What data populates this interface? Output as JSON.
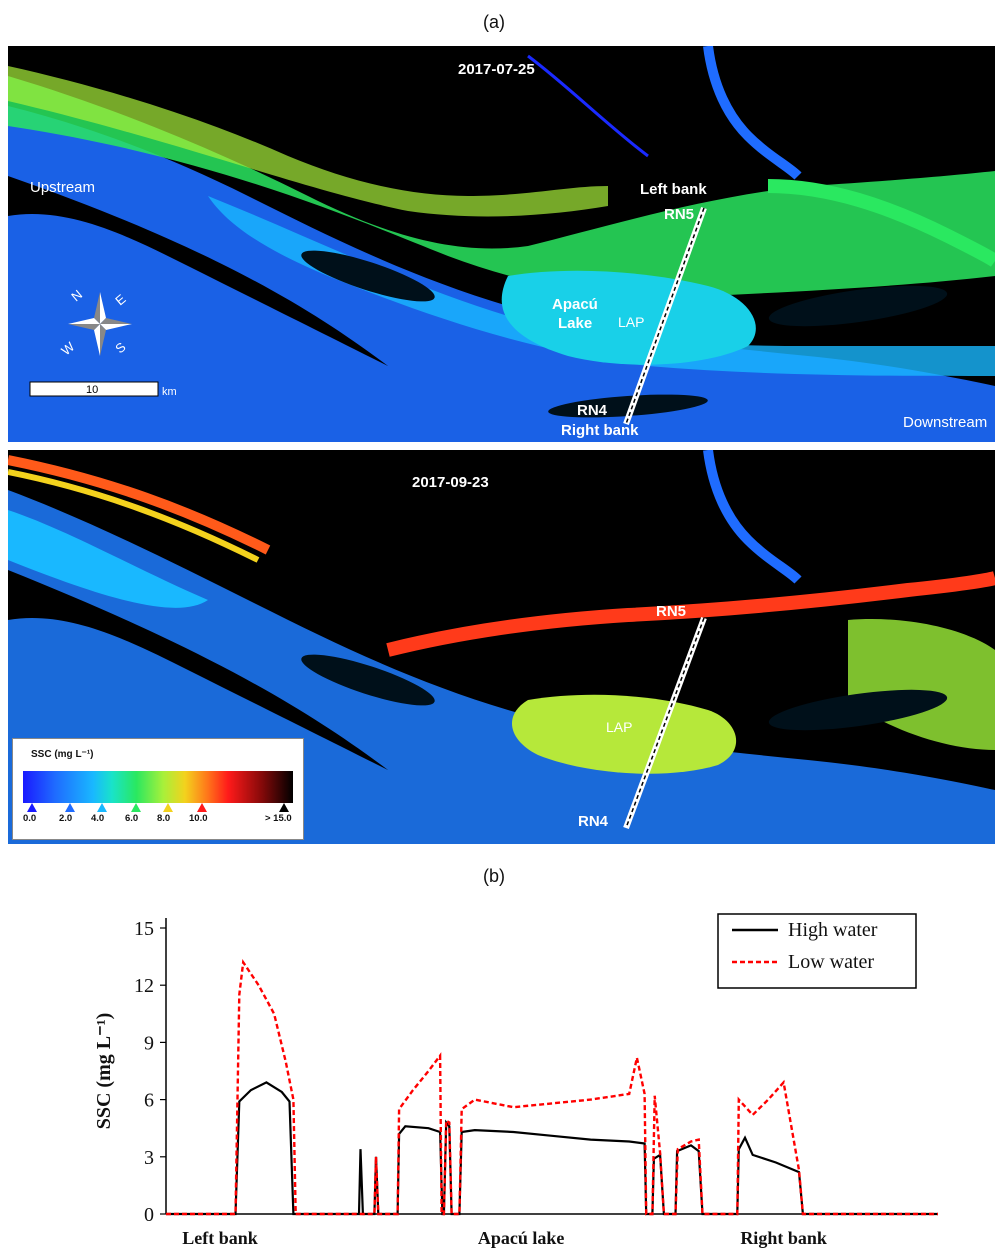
{
  "panel_a_label": "(a)",
  "panel_b_label": "(b)",
  "map_top": {
    "date": "2017-07-25",
    "labels": {
      "upstream": "Upstream",
      "downstream": "Downstream",
      "left_bank": "Left bank",
      "right_bank": "Right bank",
      "rn5": "RN5",
      "rn4": "RN4",
      "apacu_lake_line1": "Apacú",
      "apacu_lake_line2": "Lake",
      "lap": "LAP"
    },
    "compass": {
      "n": "N",
      "e": "E",
      "s": "S",
      "w": "W"
    },
    "scale_bar": {
      "value": "10",
      "unit": "km"
    }
  },
  "map_bottom": {
    "date": "2017-09-23",
    "labels": {
      "rn5": "RN5",
      "rn4": "RN4",
      "lap": "LAP"
    }
  },
  "legend": {
    "title": "SSC (mg L⁻¹)",
    "ticks": [
      "0.0",
      "2.0",
      "4.0",
      "6.0",
      "8.0",
      "10.0",
      "> 15.0"
    ],
    "colors": {
      "0.0": "#1a1aff",
      "2.0": "#1f6cff",
      "4.0": "#19b8ff",
      "6.0": "#2ae860",
      "8.0": "#f3d21d",
      "10.0": "#ff1a1a",
      "15.0": "#000000"
    }
  },
  "chart_data": {
    "type": "line",
    "title": "",
    "xlabel": "",
    "ylabel": "SSC (mg L⁻¹)",
    "ylim": [
      0,
      15
    ],
    "yticks": [
      0,
      3,
      6,
      9,
      12,
      15
    ],
    "x_category_labels": [
      "Left bank",
      "Apacú lake",
      "Right bank"
    ],
    "legend_position": "top-right",
    "series": [
      {
        "name": "High water",
        "color": "#000000",
        "style": "solid",
        "segments": [
          [
            [
              0.0,
              0
            ],
            [
              0.09,
              0
            ],
            [
              0.095,
              5.9
            ],
            [
              0.11,
              6.5
            ],
            [
              0.13,
              6.9
            ],
            [
              0.15,
              6.4
            ],
            [
              0.16,
              5.9
            ],
            [
              0.165,
              0
            ],
            [
              0.25,
              0
            ],
            [
              0.252,
              3.4
            ],
            [
              0.255,
              0
            ],
            [
              0.27,
              0
            ],
            [
              0.272,
              3.0
            ],
            [
              0.275,
              0
            ],
            [
              0.3,
              0
            ],
            [
              0.302,
              4.2
            ],
            [
              0.31,
              4.6
            ],
            [
              0.34,
              4.5
            ],
            [
              0.355,
              4.3
            ],
            [
              0.358,
              0
            ],
            [
              0.36,
              0
            ],
            [
              0.363,
              4.8
            ],
            [
              0.367,
              4.6
            ],
            [
              0.37,
              0
            ],
            [
              0.38,
              0
            ],
            [
              0.383,
              4.3
            ],
            [
              0.4,
              4.4
            ],
            [
              0.45,
              4.3
            ],
            [
              0.5,
              4.1
            ],
            [
              0.55,
              3.9
            ],
            [
              0.6,
              3.8
            ],
            [
              0.62,
              3.7
            ],
            [
              0.622,
              0
            ],
            [
              0.63,
              0
            ],
            [
              0.632,
              2.9
            ],
            [
              0.64,
              3.1
            ],
            [
              0.645,
              0
            ],
            [
              0.66,
              0
            ],
            [
              0.662,
              3.3
            ],
            [
              0.68,
              3.6
            ],
            [
              0.69,
              3.3
            ],
            [
              0.695,
              0
            ],
            [
              0.74,
              0
            ],
            [
              0.742,
              3.4
            ],
            [
              0.75,
              4.0
            ],
            [
              0.76,
              3.1
            ],
            [
              0.79,
              2.7
            ],
            [
              0.82,
              2.2
            ],
            [
              0.825,
              0
            ],
            [
              1.0,
              0
            ]
          ]
        ]
      },
      {
        "name": "Low water",
        "color": "#ff0000",
        "style": "dashed",
        "segments": [
          [
            [
              0.0,
              0
            ],
            [
              0.09,
              0
            ],
            [
              0.095,
              11.5
            ],
            [
              0.1,
              13.2
            ],
            [
              0.12,
              12.0
            ],
            [
              0.14,
              10.5
            ],
            [
              0.155,
              8.0
            ],
            [
              0.165,
              6.0
            ],
            [
              0.168,
              0
            ],
            [
              0.27,
              0
            ],
            [
              0.272,
              3.0
            ],
            [
              0.275,
              0
            ],
            [
              0.3,
              0
            ],
            [
              0.302,
              5.5
            ],
            [
              0.32,
              6.5
            ],
            [
              0.34,
              7.5
            ],
            [
              0.355,
              8.3
            ],
            [
              0.357,
              0
            ],
            [
              0.36,
              0
            ],
            [
              0.363,
              4.9
            ],
            [
              0.367,
              4.8
            ],
            [
              0.37,
              0
            ],
            [
              0.38,
              0
            ],
            [
              0.383,
              5.5
            ],
            [
              0.4,
              6.0
            ],
            [
              0.45,
              5.6
            ],
            [
              0.5,
              5.8
            ],
            [
              0.55,
              6.0
            ],
            [
              0.6,
              6.3
            ],
            [
              0.61,
              8.2
            ],
            [
              0.62,
              6.3
            ],
            [
              0.622,
              0
            ],
            [
              0.63,
              0
            ],
            [
              0.633,
              6.2
            ],
            [
              0.64,
              3.2
            ],
            [
              0.645,
              0
            ],
            [
              0.66,
              0
            ],
            [
              0.663,
              3.4
            ],
            [
              0.68,
              3.8
            ],
            [
              0.69,
              3.9
            ],
            [
              0.695,
              0
            ],
            [
              0.74,
              0
            ],
            [
              0.742,
              6.0
            ],
            [
              0.76,
              5.2
            ],
            [
              0.78,
              6.0
            ],
            [
              0.8,
              6.9
            ],
            [
              0.82,
              2.3
            ],
            [
              0.825,
              0
            ],
            [
              1.0,
              0
            ]
          ]
        ]
      }
    ]
  }
}
